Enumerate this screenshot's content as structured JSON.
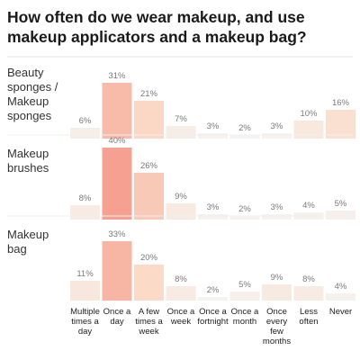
{
  "chart_data": {
    "type": "bar",
    "title": "How often do we wear makeup, and use makeup applicators and a makeup bag?",
    "categories": [
      "Multiple times a day",
      "Once a day",
      "A few times a week",
      "Once a week",
      "Once a fortnight",
      "Once a month",
      "Once every few months",
      "Less often",
      "Never"
    ],
    "category_lines": [
      [
        "Multiple",
        "times a",
        "day"
      ],
      [
        "Once a",
        "day"
      ],
      [
        "A few",
        "times a",
        "week"
      ],
      [
        "Once a",
        "week"
      ],
      [
        "Once a",
        "fortnight"
      ],
      [
        "Once a",
        "month"
      ],
      [
        "Once",
        "every",
        "few",
        "months"
      ],
      [
        "Less",
        "often"
      ],
      [
        "Never"
      ]
    ],
    "series": [
      {
        "name": "Beauty sponges / Makeup sponges",
        "name_lines": [
          "Beauty",
          "sponges /",
          "Makeup",
          "sponges"
        ],
        "values": [
          6,
          31,
          21,
          7,
          3,
          2,
          3,
          10,
          16
        ]
      },
      {
        "name": "Makeup brushes",
        "name_lines": [
          "Makeup",
          "brushes"
        ],
        "values": [
          8,
          40,
          26,
          9,
          3,
          2,
          3,
          4,
          5
        ]
      },
      {
        "name": "Makeup bag",
        "name_lines": [
          "Makeup",
          "bag"
        ],
        "values": [
          11,
          33,
          20,
          8,
          2,
          5,
          9,
          8,
          4
        ]
      }
    ],
    "value_suffix": "%",
    "ylim": [
      0,
      40
    ],
    "grid": false,
    "legend": "none"
  }
}
